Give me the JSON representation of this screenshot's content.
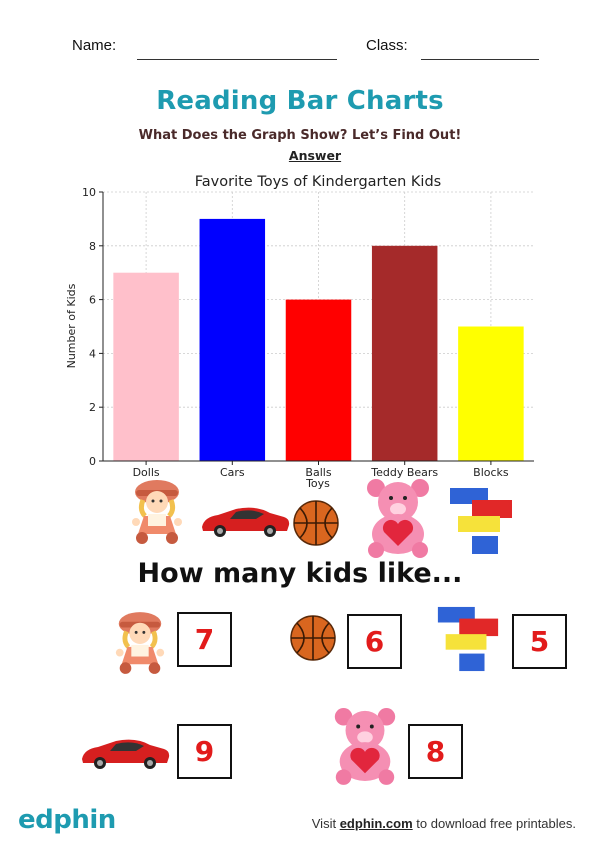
{
  "header": {
    "name_label": "Name:",
    "class_label": "Class:"
  },
  "title": "Reading Bar Charts",
  "subtitle": "What Does the Graph Show? Let’s Find Out!",
  "answer_label": "Answer",
  "chart_data": {
    "type": "bar",
    "title": "Favorite Toys of Kindergarten Kids",
    "xlabel": "Toys",
    "ylabel": "Number of Kids",
    "categories": [
      "Dolls",
      "Cars",
      "Balls",
      "Teddy Bears",
      "Blocks"
    ],
    "values": [
      7,
      9,
      6,
      8,
      5
    ],
    "colors": [
      "#ffc0cb",
      "#0000ff",
      "#ff0000",
      "#a52a2a",
      "#ffff00"
    ],
    "ylim": [
      0,
      10
    ],
    "yticks": [
      0,
      2,
      4,
      6,
      8,
      10
    ],
    "grid": true
  },
  "question": "How many kids like...",
  "answers": {
    "dolls": "7",
    "balls": "6",
    "blocks": "5",
    "cars": "9",
    "teddy_bears": "8"
  },
  "footer": {
    "logo": "edphin",
    "prefix": "Visit",
    "link": "edphin.com",
    "suffix": "to download free printables."
  }
}
